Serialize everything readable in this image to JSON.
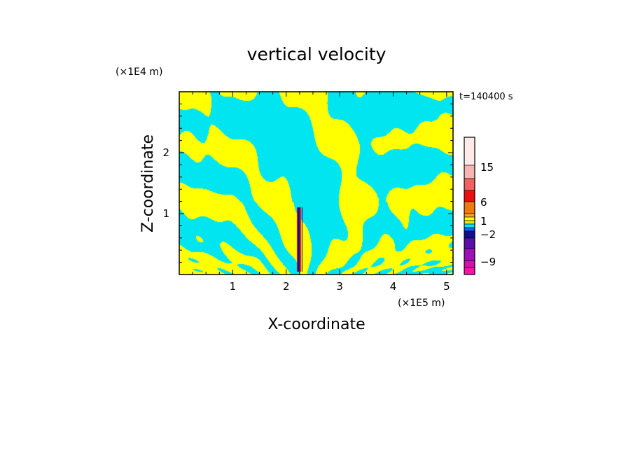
{
  "chart_data": {
    "type": "heatmap",
    "title": "vertical velocity",
    "xlabel": "X-coordinate",
    "ylabel": "Z-coordinate",
    "x_unit": "(×1E5 m)",
    "z_unit": "(×1E4 m)",
    "time_label": "t=140400 s",
    "xlim": [
      0,
      5.12
    ],
    "ylim": [
      0,
      3.0
    ],
    "x_ticks": [
      "1",
      "2",
      "3",
      "4",
      "5"
    ],
    "x_tick_values": [
      1,
      2,
      3,
      4,
      5
    ],
    "y_ticks": [
      "1",
      "2"
    ],
    "y_tick_values": [
      1,
      2
    ],
    "colorbar": {
      "labels": [
        "15",
        "6",
        "1",
        "−2",
        "−9"
      ],
      "label_values": [
        15,
        6,
        1,
        -2,
        -9
      ],
      "colors": [
        "#ffeaea",
        "#f6b4b4",
        "#ef6262",
        "#ee1010",
        "#f07a10",
        "#f9a12a",
        "#ffff00",
        "#e6e615",
        "#00e5f0",
        "#1c5cff",
        "#10108f",
        "#5a10a8",
        "#9e10b8",
        "#d510b0",
        "#ff10a8"
      ]
    },
    "field_colors": {
      "positive": "#ffff00",
      "negative": "#00e5f0",
      "strong_updraft": "#ee1010",
      "strong_downdraft": "#10108f"
    },
    "pattern": "alternating positive/negative wave bands fanning out from a central updraft near x=2.25 (×1E5 m)"
  }
}
